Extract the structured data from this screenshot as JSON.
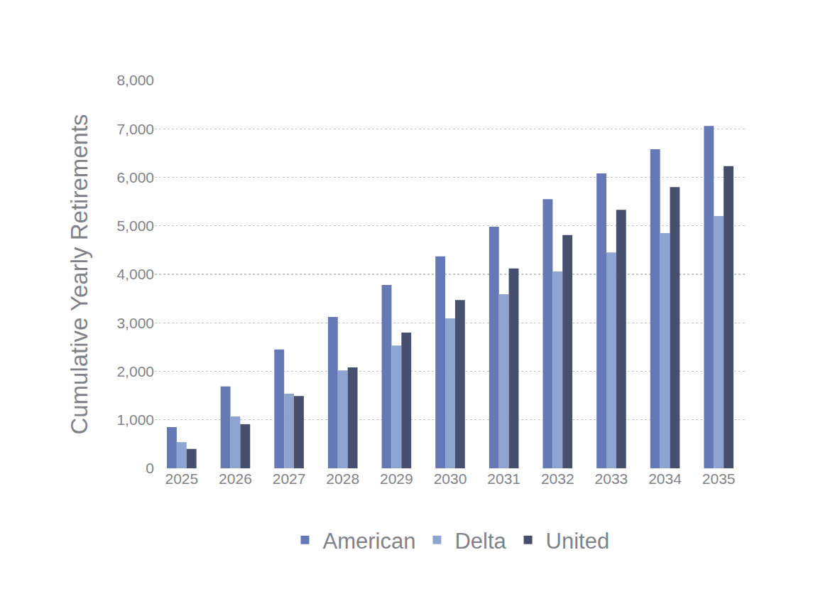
{
  "chart_data": {
    "type": "bar",
    "y_label": "Cumulative Yearly Retirements",
    "categories": [
      "2025",
      "2026",
      "2027",
      "2028",
      "2029",
      "2030",
      "2031",
      "2032",
      "2033",
      "2034",
      "2035"
    ],
    "series": [
      {
        "name": "American",
        "color": "#6479b6",
        "values": [
          850,
          1690,
          2450,
          3120,
          3780,
          4370,
          4980,
          5550,
          6080,
          6580,
          7060
        ]
      },
      {
        "name": "Delta",
        "color": "#8fa3d1",
        "values": [
          540,
          1070,
          1540,
          2020,
          2530,
          3090,
          3590,
          4060,
          4450,
          4850,
          5200
        ]
      },
      {
        "name": "United",
        "color": "#464f6e",
        "values": [
          400,
          910,
          1490,
          2080,
          2800,
          3470,
          4120,
          4810,
          5330,
          5800,
          6230
        ]
      }
    ],
    "ylim": [
      0,
      8000
    ],
    "yticks": [
      0,
      {
        "value": 1000,
        "label": "1,000"
      },
      {
        "value": 2000,
        "label": "2,000"
      },
      {
        "value": 3000,
        "label": "3,000"
      },
      {
        "value": 4000,
        "label": "4,000"
      },
      {
        "value": 5000,
        "label": "5,000"
      },
      {
        "value": 6000,
        "label": "6,000"
      },
      {
        "value": 7000,
        "label": "7,000"
      },
      {
        "value": 8000,
        "label": "8,000"
      }
    ],
    "grid": true,
    "legend": "bottom"
  }
}
